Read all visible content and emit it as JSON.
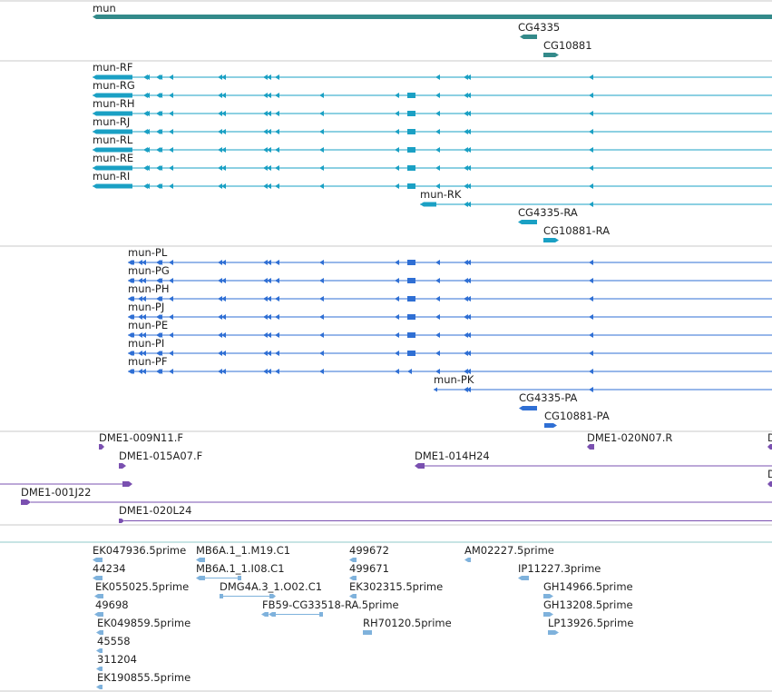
{
  "app": {
    "view": "genome-browser-tracks"
  },
  "colors": {
    "gene": "#338a8a",
    "transcript": "#1aa0c4",
    "protein": "#2f6fd4",
    "clone": "#7a50b0",
    "est": "#7fb2dc",
    "divider": "#c8c8c8"
  },
  "tracks": {
    "gene": {
      "features": [
        {
          "label": "mun"
        },
        {
          "label": "CG4335"
        },
        {
          "label": "CG10881"
        }
      ]
    },
    "transcripts": {
      "features": [
        {
          "label": "mun-RF"
        },
        {
          "label": "mun-RG"
        },
        {
          "label": "mun-RH"
        },
        {
          "label": "mun-RJ"
        },
        {
          "label": "mun-RL"
        },
        {
          "label": "mun-RE"
        },
        {
          "label": "mun-RI"
        },
        {
          "label": "mun-RK"
        },
        {
          "label": "CG4335-RA"
        },
        {
          "label": "CG10881-RA"
        }
      ]
    },
    "proteins": {
      "features": [
        {
          "label": "mun-PL"
        },
        {
          "label": "mun-PG"
        },
        {
          "label": "mun-PH"
        },
        {
          "label": "mun-PJ"
        },
        {
          "label": "mun-PE"
        },
        {
          "label": "mun-PI"
        },
        {
          "label": "mun-PF"
        },
        {
          "label": "mun-PK"
        },
        {
          "label": "CG4335-PA"
        },
        {
          "label": "CG10881-PA"
        }
      ]
    },
    "clones": {
      "features": [
        {
          "label": "DME1-009N11.F"
        },
        {
          "label": "DME1-020N07.R"
        },
        {
          "label": "D"
        },
        {
          "label": "DME1-015A07.F"
        },
        {
          "label": "DME1-014H24"
        },
        {
          "label": "D"
        },
        {
          "label": "DME1-001J22"
        },
        {
          "label": "DME1-020L24"
        }
      ]
    },
    "ests": {
      "features": [
        {
          "label": "EK047936.5prime"
        },
        {
          "label": "MB6A.1_1.M19.C1"
        },
        {
          "label": "499672"
        },
        {
          "label": "AM02227.5prime"
        },
        {
          "label": "44234"
        },
        {
          "label": "MB6A.1_1.I08.C1"
        },
        {
          "label": "499671"
        },
        {
          "label": "IP11227.3prime"
        },
        {
          "label": "EK055025.5prime"
        },
        {
          "label": "DMG4A.3_1.O02.C1"
        },
        {
          "label": "EK302315.5prime"
        },
        {
          "label": "GH14966.5prime"
        },
        {
          "label": "49698"
        },
        {
          "label": "FB59-CG33518-RA.5prime"
        },
        {
          "label": "GH13208.5prime"
        },
        {
          "label": "EK049859.5prime"
        },
        {
          "label": "RH70120.5prime"
        },
        {
          "label": "LP13926.5prime"
        },
        {
          "label": "45558"
        },
        {
          "label": "311204"
        },
        {
          "label": "EK190855.5prime"
        }
      ]
    }
  }
}
